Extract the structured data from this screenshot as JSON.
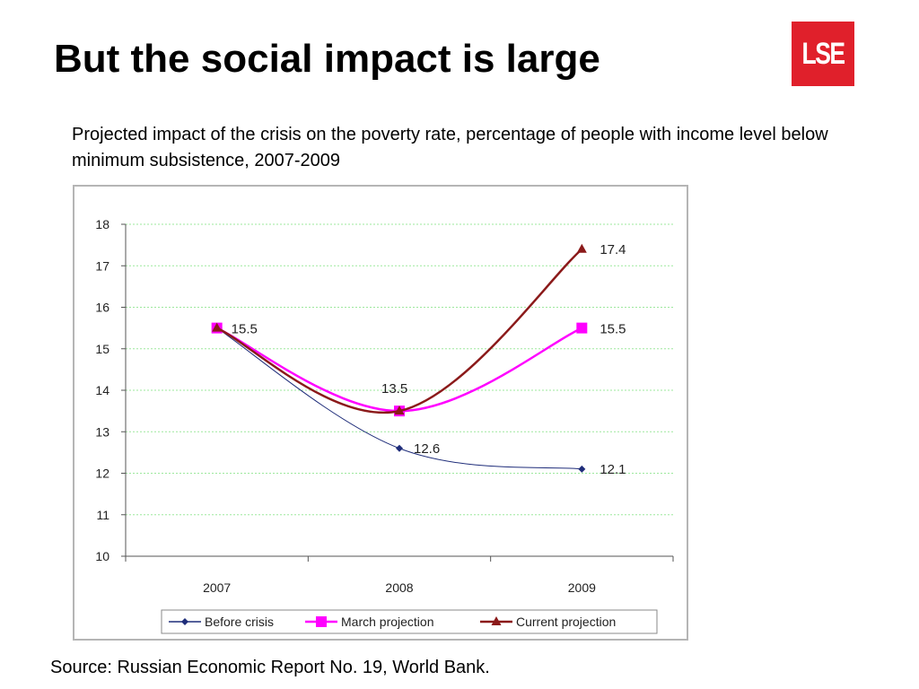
{
  "slide": {
    "title": "But the social impact is large",
    "logo_text": "LSE",
    "caption": "Projected impact of the crisis on the poverty rate, percentage of people with income level below minimum subsistence, 2007-2009",
    "source": "Source: Russian Economic Report No. 19, World Bank."
  },
  "colors": {
    "logo_background": "#e0202b",
    "before_crisis": "#1f2d7a",
    "march_projection": "#ff00ff",
    "current_projection": "#8b1a1a",
    "gridline": "#9ee89e"
  },
  "chart_data": {
    "type": "line",
    "title": "",
    "xlabel": "",
    "ylabel": "",
    "categories": [
      "2007",
      "2008",
      "2009"
    ],
    "ylim": [
      10,
      18
    ],
    "yticks": [
      "10",
      "11",
      "12",
      "13",
      "14",
      "15",
      "16",
      "17",
      "18"
    ],
    "grid": true,
    "legend_position": "bottom",
    "series": [
      {
        "name": "Before crisis",
        "values": [
          15.5,
          12.6,
          12.1
        ],
        "marker": "diamond",
        "labels": [
          "",
          "12.6",
          "12.1"
        ]
      },
      {
        "name": "March projection",
        "values": [
          15.5,
          13.5,
          15.5
        ],
        "marker": "square",
        "labels": [
          "15.5",
          "13.5",
          "15.5"
        ]
      },
      {
        "name": "Current projection",
        "values": [
          15.5,
          13.5,
          17.4
        ],
        "marker": "triangle",
        "labels": [
          "",
          "",
          "17.4"
        ]
      }
    ]
  }
}
